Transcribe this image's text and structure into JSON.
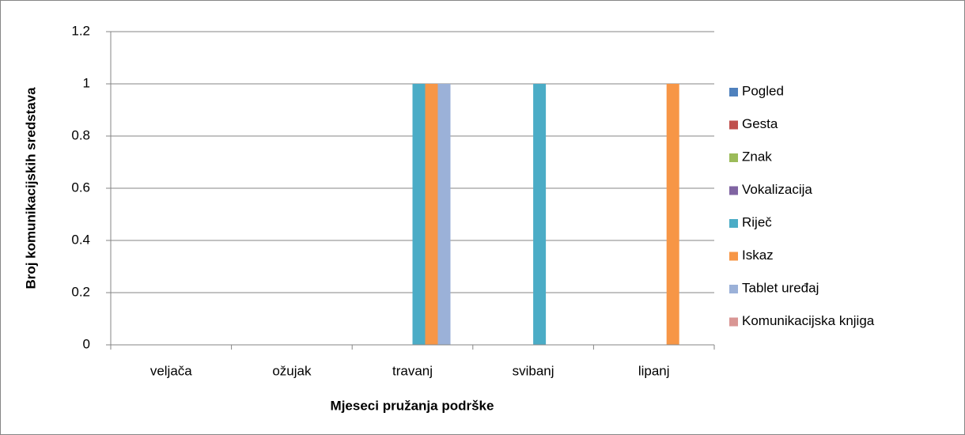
{
  "chart_data": {
    "type": "bar",
    "xlabel": "Mjeseci pružanja podrške",
    "ylabel": "Broj komunikacijskih sredstava",
    "categories": [
      "veljača",
      "ožujak",
      "travanj",
      "svibanj",
      "lipanj"
    ],
    "series": [
      {
        "name": "Pogled",
        "color": "#4f81bd",
        "values": [
          0,
          0,
          0,
          0,
          0
        ]
      },
      {
        "name": "Gesta",
        "color": "#c0504d",
        "values": [
          0,
          0,
          0,
          0,
          0
        ]
      },
      {
        "name": "Znak",
        "color": "#9bbb59",
        "values": [
          0,
          0,
          0,
          0,
          0
        ]
      },
      {
        "name": "Vokalizacija",
        "color": "#8064a2",
        "values": [
          0,
          0,
          0,
          0,
          0
        ]
      },
      {
        "name": "Riječ",
        "color": "#4bacc6",
        "values": [
          0,
          0,
          1,
          1,
          0
        ]
      },
      {
        "name": "Iskaz",
        "color": "#f79646",
        "values": [
          0,
          0,
          1,
          0,
          1
        ]
      },
      {
        "name": "Tablet uređaj",
        "color": "#9bb1d8",
        "values": [
          0,
          0,
          1,
          0,
          0
        ]
      },
      {
        "name": "Komunikacijska knjiga",
        "color": "#d99694",
        "values": [
          0,
          0,
          0,
          0,
          0
        ]
      }
    ],
    "ylim": [
      0,
      1.2
    ],
    "yticks": [
      0,
      0.2,
      0.4,
      0.6,
      0.8,
      1,
      1.2
    ],
    "grid": true,
    "legend": "right"
  }
}
